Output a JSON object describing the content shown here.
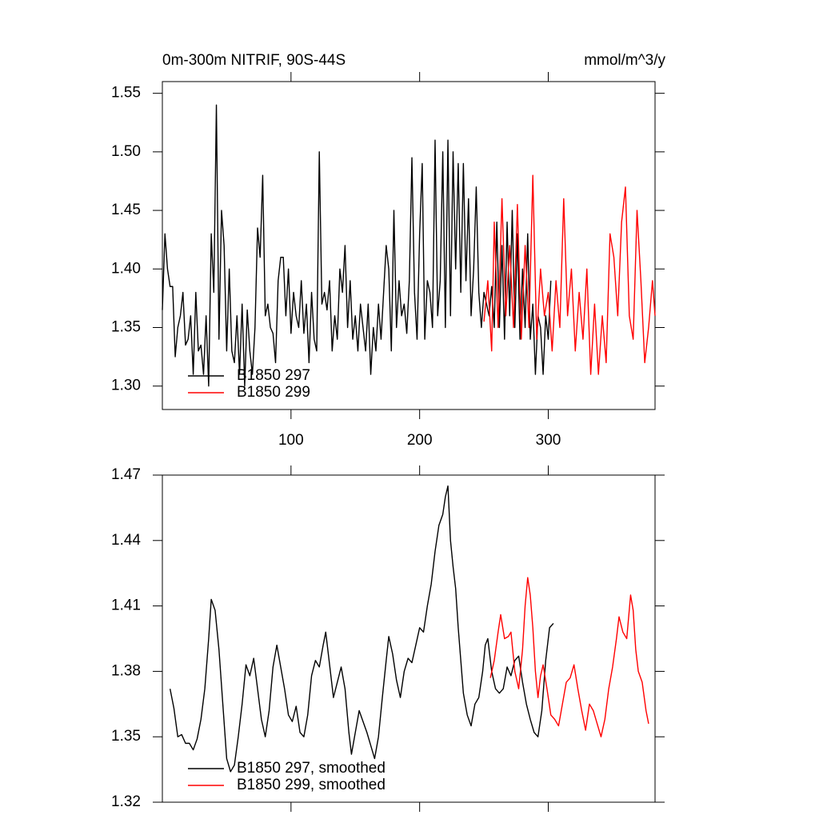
{
  "chart_data": [
    {
      "type": "line",
      "title": "0m-300m NITRIF, 90S-44S",
      "units": "mmol/m^3/y",
      "xlim": [
        0,
        383
      ],
      "xticks": [
        100,
        200,
        300
      ],
      "xtick_labels": true,
      "ylim": [
        1.28,
        1.56
      ],
      "yticks": [
        1.55,
        {
          "value": 1.5,
          "label": "1.50"
        },
        1.45,
        {
          "value": 1.4,
          "label": "1.40"
        },
        1.35,
        {
          "value": 1.3,
          "label": "1.30"
        }
      ],
      "legend": "lower left",
      "series": [
        {
          "name": "B1850 297",
          "color": "#000000",
          "x": [
            0,
            2,
            4,
            6,
            8,
            10,
            12,
            14,
            16,
            18,
            20,
            22,
            24,
            26,
            28,
            30,
            32,
            34,
            36,
            38,
            40,
            42,
            44,
            46,
            48,
            50,
            52,
            54,
            56,
            58,
            60,
            62,
            64,
            66,
            68,
            70,
            72,
            74,
            76,
            78,
            80,
            82,
            84,
            86,
            88,
            90,
            92,
            94,
            96,
            98,
            100,
            102,
            104,
            106,
            108,
            110,
            112,
            114,
            116,
            118,
            120,
            122,
            124,
            126,
            128,
            130,
            132,
            134,
            136,
            138,
            140,
            142,
            144,
            146,
            148,
            150,
            152,
            154,
            156,
            158,
            160,
            162,
            164,
            166,
            168,
            170,
            172,
            174,
            176,
            178,
            180,
            182,
            184,
            186,
            188,
            190,
            192,
            194,
            196,
            198,
            200,
            202,
            204,
            206,
            208,
            210,
            212,
            214,
            216,
            218,
            220,
            222,
            224,
            226,
            228,
            230,
            232,
            234,
            236,
            238,
            240,
            242,
            244,
            246,
            248,
            250,
            252,
            254,
            256,
            258,
            260,
            262,
            264,
            266,
            268,
            270,
            272,
            274,
            276,
            278,
            280,
            282,
            284,
            286,
            288,
            290,
            292,
            294,
            296,
            298,
            300,
            302
          ],
          "values": [
            1.365,
            1.43,
            1.4,
            1.385,
            1.385,
            1.325,
            1.35,
            1.36,
            1.38,
            1.335,
            1.34,
            1.36,
            1.31,
            1.38,
            1.33,
            1.335,
            1.31,
            1.36,
            1.3,
            1.43,
            1.38,
            1.54,
            1.34,
            1.45,
            1.42,
            1.33,
            1.4,
            1.33,
            1.32,
            1.36,
            1.31,
            1.37,
            1.3,
            1.365,
            1.33,
            1.31,
            1.35,
            1.435,
            1.41,
            1.48,
            1.36,
            1.37,
            1.35,
            1.345,
            1.32,
            1.39,
            1.41,
            1.41,
            1.36,
            1.4,
            1.345,
            1.38,
            1.36,
            1.35,
            1.39,
            1.345,
            1.37,
            1.32,
            1.38,
            1.34,
            1.33,
            1.5,
            1.37,
            1.38,
            1.365,
            1.39,
            1.33,
            1.36,
            1.34,
            1.4,
            1.38,
            1.42,
            1.35,
            1.39,
            1.34,
            1.36,
            1.33,
            1.37,
            1.35,
            1.33,
            1.37,
            1.31,
            1.35,
            1.33,
            1.37,
            1.34,
            1.38,
            1.42,
            1.4,
            1.33,
            1.45,
            1.35,
            1.39,
            1.36,
            1.37,
            1.345,
            1.39,
            1.495,
            1.38,
            1.34,
            1.43,
            1.49,
            1.34,
            1.39,
            1.38,
            1.35,
            1.51,
            1.36,
            1.39,
            1.5,
            1.35,
            1.51,
            1.36,
            1.5,
            1.4,
            1.49,
            1.38,
            1.49,
            1.39,
            1.46,
            1.36,
            1.4,
            1.47,
            1.38,
            1.35,
            1.38,
            1.37,
            1.36,
            1.385,
            1.35,
            1.44,
            1.35,
            1.42,
            1.34,
            1.44,
            1.36,
            1.45,
            1.35,
            1.43,
            1.34,
            1.4,
            1.35,
            1.43,
            1.34,
            1.37,
            1.31,
            1.36,
            1.35,
            1.31,
            1.36,
            1.34,
            1.39
          ]
        },
        {
          "name": "B1850 299",
          "color": "#ff0000",
          "x": [
            250,
            253,
            256,
            258,
            261,
            264,
            267,
            270,
            273,
            276,
            279,
            282,
            285,
            288,
            291,
            294,
            297,
            300,
            303,
            306,
            309,
            312,
            315,
            318,
            321,
            324,
            327,
            330,
            333,
            336,
            339,
            342,
            345,
            348,
            351,
            354,
            357,
            360,
            363,
            366,
            369,
            372,
            375,
            378,
            381,
            383
          ],
          "values": [
            1.355,
            1.39,
            1.33,
            1.44,
            1.35,
            1.46,
            1.36,
            1.42,
            1.35,
            1.455,
            1.34,
            1.42,
            1.35,
            1.48,
            1.34,
            1.4,
            1.36,
            1.38,
            1.33,
            1.39,
            1.35,
            1.46,
            1.36,
            1.4,
            1.33,
            1.38,
            1.34,
            1.4,
            1.31,
            1.37,
            1.31,
            1.36,
            1.32,
            1.43,
            1.41,
            1.36,
            1.44,
            1.47,
            1.36,
            1.34,
            1.45,
            1.39,
            1.32,
            1.35,
            1.39,
            1.36
          ]
        }
      ]
    },
    {
      "type": "line",
      "xlim": [
        0,
        383
      ],
      "xticks": [
        100,
        200,
        300
      ],
      "xtick_labels": false,
      "ylim": [
        1.32,
        1.47
      ],
      "yticks": [
        1.47,
        1.44,
        1.41,
        1.38,
        1.35,
        1.32
      ],
      "legend": "lower left",
      "series": [
        {
          "name": "B1850 297, smoothed",
          "color": "#000000",
          "x": [
            6,
            9,
            12,
            15,
            18,
            21,
            24,
            27,
            30,
            33,
            36,
            38,
            41,
            44,
            47,
            50,
            53,
            56,
            59,
            62,
            65,
            68,
            71,
            74,
            77,
            80,
            83,
            86,
            89,
            92,
            95,
            98,
            101,
            104,
            107,
            110,
            113,
            116,
            119,
            122,
            125,
            127,
            130,
            133,
            136,
            139,
            142,
            145,
            147,
            150,
            153,
            156,
            159,
            162,
            165,
            168,
            171,
            174,
            176,
            179,
            182,
            185,
            188,
            191,
            194,
            197,
            200,
            203,
            206,
            209,
            212,
            215,
            218,
            220,
            222,
            224,
            226,
            228,
            230,
            232,
            234,
            237,
            240,
            243,
            246,
            249,
            251,
            253,
            256,
            259,
            262,
            265,
            268,
            271,
            274,
            277,
            280,
            283,
            286,
            289,
            292,
            295,
            298,
            301,
            304
          ],
          "values": [
            1.372,
            1.363,
            1.35,
            1.351,
            1.347,
            1.347,
            1.344,
            1.349,
            1.358,
            1.372,
            1.395,
            1.413,
            1.408,
            1.39,
            1.365,
            1.34,
            1.334,
            1.337,
            1.35,
            1.365,
            1.383,
            1.378,
            1.386,
            1.372,
            1.358,
            1.35,
            1.362,
            1.382,
            1.392,
            1.382,
            1.372,
            1.36,
            1.357,
            1.364,
            1.352,
            1.35,
            1.36,
            1.378,
            1.385,
            1.382,
            1.392,
            1.398,
            1.383,
            1.368,
            1.375,
            1.382,
            1.372,
            1.352,
            1.342,
            1.352,
            1.362,
            1.357,
            1.352,
            1.346,
            1.34,
            1.35,
            1.368,
            1.385,
            1.396,
            1.388,
            1.376,
            1.368,
            1.38,
            1.386,
            1.384,
            1.392,
            1.4,
            1.398,
            1.41,
            1.42,
            1.435,
            1.447,
            1.452,
            1.46,
            1.465,
            1.44,
            1.428,
            1.418,
            1.4,
            1.385,
            1.37,
            1.36,
            1.355,
            1.365,
            1.368,
            1.38,
            1.392,
            1.395,
            1.38,
            1.372,
            1.37,
            1.372,
            1.382,
            1.378,
            1.385,
            1.387,
            1.375,
            1.365,
            1.358,
            1.352,
            1.35,
            1.362,
            1.385,
            1.4,
            1.402
          ]
        },
        {
          "name": "B1850 299, smoothed",
          "color": "#ff0000",
          "x": [
            255,
            258,
            261,
            263,
            266,
            269,
            271,
            274,
            277,
            280,
            282,
            284,
            286,
            288,
            290,
            292,
            294,
            296,
            299,
            302,
            305,
            308,
            311,
            314,
            317,
            320,
            323,
            326,
            329,
            332,
            335,
            338,
            341,
            344,
            347,
            350,
            353,
            355,
            358,
            361,
            364,
            366,
            368,
            370,
            373,
            376,
            378
          ],
          "values": [
            1.377,
            1.385,
            1.398,
            1.406,
            1.395,
            1.396,
            1.398,
            1.38,
            1.372,
            1.39,
            1.41,
            1.423,
            1.415,
            1.4,
            1.38,
            1.368,
            1.378,
            1.383,
            1.372,
            1.36,
            1.358,
            1.355,
            1.365,
            1.375,
            1.377,
            1.383,
            1.372,
            1.362,
            1.353,
            1.365,
            1.362,
            1.356,
            1.35,
            1.358,
            1.372,
            1.382,
            1.395,
            1.405,
            1.398,
            1.395,
            1.415,
            1.408,
            1.39,
            1.38,
            1.375,
            1.362,
            1.356
          ]
        }
      ]
    }
  ]
}
